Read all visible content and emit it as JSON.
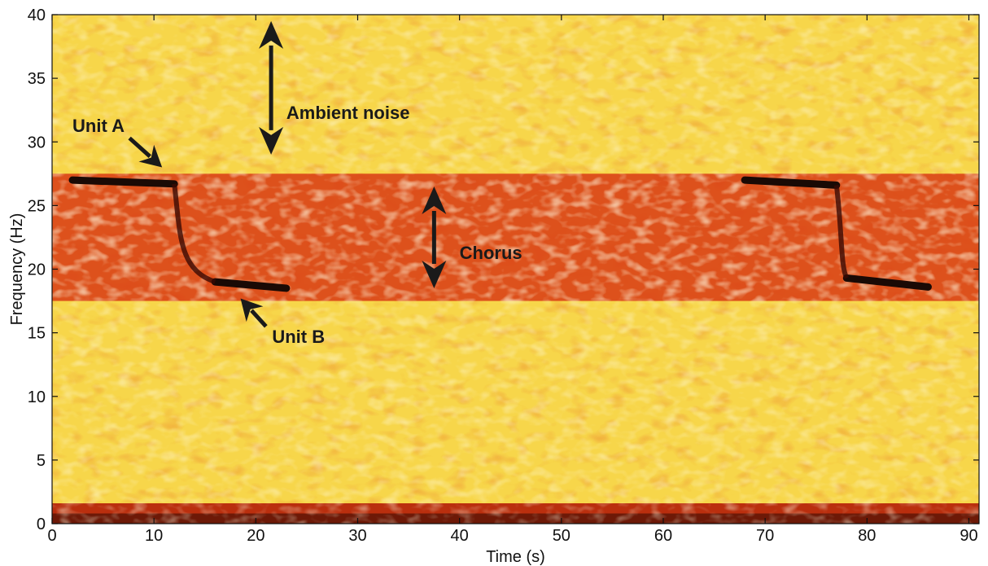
{
  "chart_data": {
    "type": "heatmap",
    "title": "",
    "xlabel": "Time (s)",
    "ylabel": "Frequency (Hz)",
    "xlim": [
      0,
      91
    ],
    "ylim": [
      0,
      40
    ],
    "xticks": [
      0,
      10,
      20,
      30,
      40,
      50,
      60,
      70,
      80,
      90
    ],
    "yticks": [
      0,
      5,
      10,
      15,
      20,
      25,
      30,
      35,
      40
    ],
    "grid": false,
    "colormap": "hot (black-red-yellow-white)",
    "colors": {
      "background_noise": "#f7d64a",
      "chorus_band": "#d83a14",
      "low_band": "#b21d08",
      "signal": "#1a0a05",
      "annotation": "#1a1a1a"
    },
    "series": [
      {
        "name": "Unit A",
        "segments": [
          {
            "x": [
              2,
              12
            ],
            "y": [
              27.0,
              26.7
            ]
          },
          {
            "x": [
              68,
              77
            ],
            "y": [
              27.0,
              26.6
            ]
          }
        ]
      },
      {
        "name": "Unit B",
        "segments": [
          {
            "x": [
              16,
              23
            ],
            "y": [
              19.0,
              18.5
            ]
          },
          {
            "x": [
              78,
              86
            ],
            "y": [
              19.3,
              18.6
            ]
          }
        ]
      }
    ],
    "bands": [
      {
        "label": "Chorus",
        "y": [
          17.5,
          27.5
        ]
      },
      {
        "label": "Ambient noise",
        "y": [
          27.5,
          40
        ]
      }
    ],
    "annotations": [
      {
        "text": "Ambient noise",
        "arrow": "vertical double",
        "x": 21.5,
        "y": [
          29,
          39.5
        ],
        "text_x": 23,
        "text_y": 31.8
      },
      {
        "text": "Chorus",
        "arrow": "vertical double",
        "x": 37.5,
        "y": [
          18.5,
          26.5
        ],
        "text_x": 40,
        "text_y": 20.8
      },
      {
        "text": "Unit A",
        "arrow": "pointer",
        "text_x": 2,
        "text_y": 30.8,
        "tip": [
          10.8,
          28
        ]
      },
      {
        "text": "Unit B",
        "arrow": "pointer",
        "text_x": 22,
        "text_y": 14.2,
        "tip": [
          18.5,
          17.7
        ]
      }
    ]
  }
}
